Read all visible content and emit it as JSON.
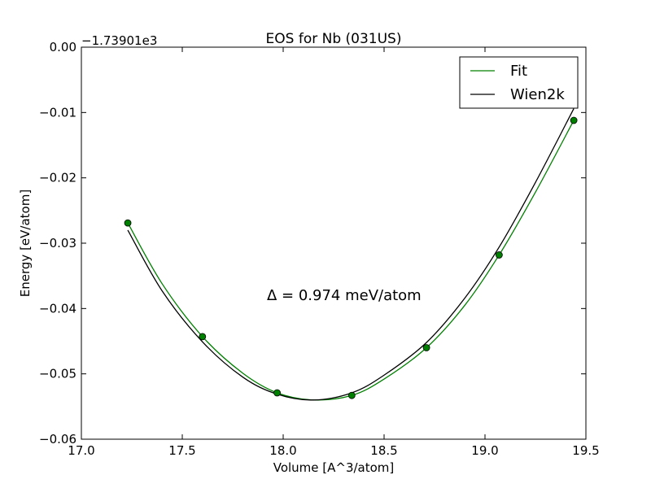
{
  "chart_data": {
    "type": "line",
    "title": "EOS for Nb (031US)",
    "xlabel": "Volume [A^3/atom]",
    "ylabel": "Energy [eV/atom]",
    "offset_label": "−1.73901e3",
    "xlim": [
      17.0,
      19.5
    ],
    "ylim": [
      -0.06,
      0.0
    ],
    "xticks": [
      "17.0",
      "17.5",
      "18.0",
      "18.5",
      "19.0",
      "19.5"
    ],
    "yticks": [
      "0.00",
      "−0.01",
      "−0.02",
      "−0.03",
      "−0.04",
      "−0.05",
      "−0.06"
    ],
    "grid": false,
    "legend_position": "top-right",
    "annotation": "Δ = 0.974 meV/atom",
    "points": {
      "color": "#008000",
      "x": [
        17.23,
        17.6,
        17.97,
        18.34,
        18.71,
        19.07,
        19.44
      ],
      "y": [
        -0.0269,
        -0.0443,
        -0.0529,
        -0.0533,
        -0.046,
        -0.0318,
        -0.0112
      ]
    },
    "series": [
      {
        "name": "Fit",
        "color": "#008000",
        "x": [
          17.23,
          17.4,
          17.6,
          17.8,
          17.97,
          18.15,
          18.34,
          18.5,
          18.71,
          18.9,
          19.07,
          19.25,
          19.44
        ],
        "y": [
          -0.0269,
          -0.0362,
          -0.0443,
          -0.0499,
          -0.0529,
          -0.054,
          -0.0533,
          -0.0508,
          -0.046,
          -0.0395,
          -0.0318,
          -0.0222,
          -0.0112
        ]
      },
      {
        "name": "Wien2k",
        "color": "#000000",
        "x": [
          17.23,
          17.4,
          17.6,
          17.8,
          17.97,
          18.15,
          18.34,
          18.5,
          18.71,
          18.9,
          19.07,
          19.25,
          19.44
        ],
        "y": [
          -0.028,
          -0.0373,
          -0.0451,
          -0.0505,
          -0.0531,
          -0.054,
          -0.0529,
          -0.0502,
          -0.0452,
          -0.0384,
          -0.0306,
          -0.0207,
          -0.0094
        ]
      }
    ]
  }
}
